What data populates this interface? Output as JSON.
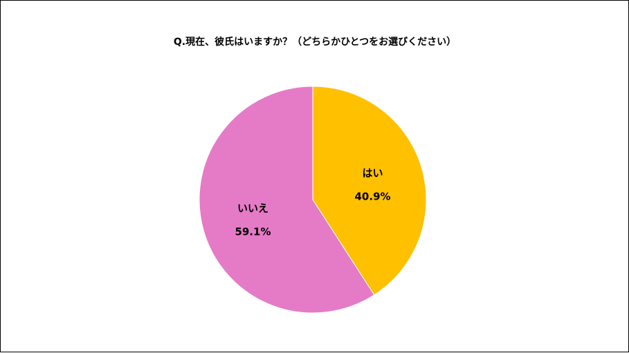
{
  "chart_data": {
    "type": "pie",
    "title": "Q.現在、彼氏はいますか？（どちらかひとつをお選びください）",
    "start_angle_deg": 0,
    "direction": "clockwise",
    "slices": [
      {
        "label": "はい",
        "value": 40.9,
        "value_label": "40.9%",
        "color": "#FFC000"
      },
      {
        "label": "いいえ",
        "value": 59.1,
        "value_label": "59.1%",
        "color": "#E57BC6"
      }
    ],
    "legend": "none"
  }
}
